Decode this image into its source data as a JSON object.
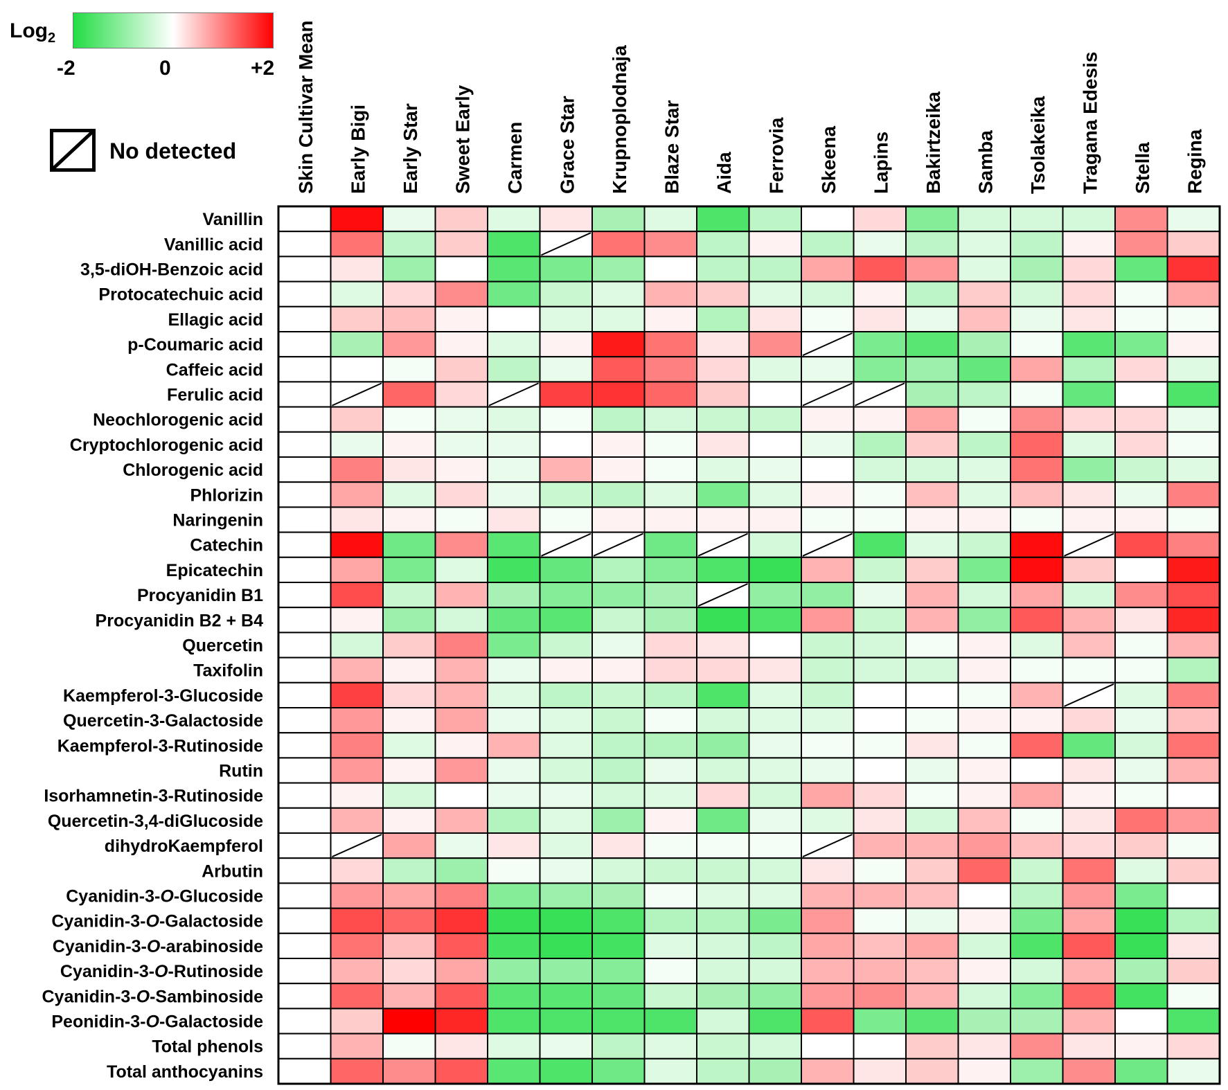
{
  "legend": {
    "label": "Log",
    "label_sub": "2",
    "min_label": "-2",
    "mid_label": "0",
    "max_label": "+2",
    "colors": {
      "low": "#22dd44",
      "mid": "#ffffff",
      "high": "#ff0000"
    },
    "no_detected_label": "No detected"
  },
  "chart_data": {
    "type": "heatmap",
    "scale": "log2",
    "range": [
      -2,
      2
    ],
    "columns": [
      "Skin Cultivar Mean",
      "Early Bigi",
      "Early Star",
      "Sweet Early",
      "Carmen",
      "Grace Star",
      "Krupnoplodnaja",
      "Blaze Star",
      "Aida",
      "Ferrovia",
      "Skeena",
      "Lapins",
      "Bakirtzeika",
      "Samba",
      "Tsolakeika",
      "Tragana Edesis",
      "Stella",
      "Regina"
    ],
    "rows": [
      {
        "label": "Vanillin",
        "values": [
          0,
          1.9,
          -0.2,
          0.4,
          -0.3,
          0.2,
          -0.8,
          -0.3,
          -1.6,
          -0.6,
          0,
          0.3,
          -1.1,
          -0.4,
          -0.4,
          -0.4,
          0.9,
          -0.2
        ]
      },
      {
        "label": "Vanillic acid",
        "values": [
          0,
          1.1,
          -0.6,
          0.4,
          -1.6,
          null,
          1.1,
          0.9,
          -0.6,
          0.1,
          -0.6,
          -0.2,
          -0.6,
          -0.3,
          -0.6,
          0.1,
          0.9,
          0.4
        ]
      },
      {
        "label": "3,5-diOH-Benzoic acid",
        "values": [
          0,
          0.2,
          -0.9,
          0,
          -1.5,
          -1.2,
          -0.9,
          0,
          -0.6,
          -0.6,
          0.7,
          1.3,
          0.8,
          -0.3,
          -0.8,
          0.3,
          -1.4,
          1.6
        ]
      },
      {
        "label": "Protocatechuic acid",
        "values": [
          0,
          -0.3,
          0.3,
          0.9,
          -1.3,
          -0.5,
          -0.3,
          0.6,
          0.4,
          -0.3,
          -0.4,
          0.1,
          -0.6,
          0.4,
          -0.4,
          0.3,
          -0.1,
          0.7
        ]
      },
      {
        "label": "Ellagic acid",
        "values": [
          0,
          0.4,
          0.5,
          0.1,
          0,
          -0.3,
          -0.3,
          0.1,
          -0.7,
          0.2,
          -0.1,
          0.2,
          -0.2,
          0.5,
          -0.2,
          0.2,
          -0.1,
          -0.1
        ]
      },
      {
        "label": "p-Coumaric acid",
        "values": [
          0,
          -0.8,
          0.8,
          0.1,
          -0.3,
          0.1,
          1.8,
          1.1,
          0.2,
          0.9,
          null,
          -1.2,
          -1.5,
          -0.8,
          -0.1,
          -1.5,
          -1.2,
          0.1
        ]
      },
      {
        "label": "Caffeic acid",
        "values": [
          0,
          0,
          -0.1,
          0.4,
          -0.6,
          -0.2,
          1.3,
          1.0,
          0.3,
          -0.3,
          -0.2,
          -1.1,
          -0.9,
          -1.4,
          0.7,
          -0.7,
          0.3,
          -0.3
        ]
      },
      {
        "label": "Ferulic acid",
        "values": [
          0,
          null,
          1.2,
          0.3,
          null,
          1.5,
          1.6,
          1.2,
          0.4,
          0,
          null,
          null,
          -0.8,
          -0.6,
          -0.1,
          -1.4,
          0,
          -1.6
        ]
      },
      {
        "label": "Neochlorogenic acid",
        "values": [
          0,
          0.4,
          -0.1,
          -0.2,
          -0.3,
          -0.1,
          -0.6,
          -0.4,
          -0.5,
          -0.5,
          0.1,
          0.1,
          0.7,
          -0.1,
          0.9,
          0.3,
          0.3,
          -0.2
        ]
      },
      {
        "label": "Cryptochlorogenic acid",
        "values": [
          0,
          -0.2,
          0.1,
          -0.2,
          -0.2,
          0,
          0.1,
          -0.1,
          0.2,
          0,
          -0.2,
          -0.7,
          0.4,
          -0.6,
          1.2,
          -0.3,
          0.3,
          -0.1
        ]
      },
      {
        "label": "Chlorogenic acid",
        "values": [
          0,
          1.0,
          0.2,
          0.1,
          -0.2,
          0.6,
          0.1,
          -0.1,
          -0.3,
          -0.2,
          0,
          -0.4,
          -0.4,
          -0.3,
          1.1,
          -1.0,
          -0.5,
          -0.3
        ]
      },
      {
        "label": "Phlorizin",
        "values": [
          0,
          0.7,
          -0.3,
          0.3,
          -0.2,
          -0.5,
          -0.6,
          -0.3,
          -1.2,
          -0.3,
          0.1,
          -0.1,
          0.5,
          -0.3,
          0.5,
          0.2,
          -0.2,
          1.0
        ]
      },
      {
        "label": "Naringenin",
        "values": [
          0,
          0.2,
          0.1,
          -0.1,
          0.2,
          -0.1,
          0.1,
          0.1,
          0.1,
          0.1,
          -0.1,
          -0.1,
          0.1,
          0.1,
          -0.1,
          0.1,
          0.1,
          -0.1
        ]
      },
      {
        "label": "Catechin",
        "values": [
          0,
          1.9,
          -1.3,
          0.9,
          -1.5,
          null,
          null,
          -1.3,
          null,
          -0.4,
          null,
          -1.6,
          -0.3,
          -0.5,
          1.9,
          null,
          1.4,
          1.0
        ]
      },
      {
        "label": "Epicatechin",
        "values": [
          0,
          0.7,
          -1.2,
          -0.3,
          -1.7,
          -1.4,
          -0.7,
          -1.1,
          -1.6,
          -1.8,
          0.6,
          -0.5,
          0.4,
          -1.2,
          1.9,
          0.4,
          0,
          1.8
        ]
      },
      {
        "label": "Procyanidin B1",
        "values": [
          0,
          1.4,
          -0.5,
          0.6,
          -0.8,
          -1.1,
          -1.0,
          -0.8,
          null,
          -1.0,
          -1.0,
          -0.2,
          0.6,
          -0.4,
          0.7,
          -0.4,
          0.9,
          1.4
        ]
      },
      {
        "label": "Procyanidin B2 + B4",
        "values": [
          0,
          0.1,
          -0.9,
          -0.4,
          -1.4,
          -1.5,
          -0.5,
          -0.8,
          -1.8,
          -1.6,
          0.8,
          -0.5,
          0.6,
          -1.0,
          1.3,
          0.6,
          0.2,
          1.7
        ]
      },
      {
        "label": "Quercetin",
        "values": [
          0,
          -0.4,
          0.4,
          1.0,
          -1.2,
          -0.5,
          -0.2,
          0.3,
          0.2,
          0,
          -0.5,
          -0.4,
          -0.1,
          0.1,
          -0.3,
          0.5,
          -0.1,
          0.6
        ]
      },
      {
        "label": "Taxifolin",
        "values": [
          0,
          0.6,
          0.1,
          0.6,
          -0.2,
          0.1,
          0.1,
          0.3,
          0.3,
          0.2,
          -0.5,
          -0.4,
          -0.4,
          0.1,
          -0.1,
          -0.1,
          -0.1,
          -0.7
        ]
      },
      {
        "label": "Kaempferol-3-Glucoside",
        "values": [
          0,
          1.5,
          0.3,
          0.6,
          -0.3,
          -0.6,
          -0.5,
          -0.6,
          -1.6,
          -0.3,
          -0.5,
          0,
          0,
          -0.1,
          0.6,
          null,
          -0.3,
          1.0
        ]
      },
      {
        "label": "Quercetin-3-Galactoside",
        "values": [
          0,
          0.8,
          0.1,
          0.7,
          -0.2,
          -0.3,
          -0.5,
          -0.1,
          -0.4,
          -0.3,
          -0.3,
          0,
          -0.1,
          0.1,
          0.1,
          0.3,
          -0.2,
          0.5
        ]
      },
      {
        "label": "Kaempferol-3-Rutinoside",
        "values": [
          0,
          1.0,
          -0.3,
          0.1,
          0.6,
          -0.3,
          -0.6,
          -0.7,
          -1.0,
          -0.2,
          -0.1,
          -0.1,
          0.2,
          -0.1,
          1.2,
          -1.4,
          -0.4,
          1.1
        ]
      },
      {
        "label": "Rutin",
        "values": [
          0,
          0.8,
          0.1,
          0.8,
          -0.2,
          -0.4,
          -0.6,
          -0.2,
          -0.4,
          -0.3,
          -0.2,
          0,
          -0.2,
          0.1,
          0,
          0.2,
          -0.2,
          0.6
        ]
      },
      {
        "label": "Isorhamnetin-3-Rutinoside",
        "values": [
          0,
          0.1,
          -0.4,
          0,
          -0.2,
          -0.2,
          -0.4,
          -0.3,
          0.3,
          -0.4,
          0.7,
          0.3,
          -0.1,
          0.1,
          0.7,
          0.1,
          -0.1,
          0
        ]
      },
      {
        "label": "Quercetin-3,4-diGlucoside",
        "values": [
          0,
          0.6,
          0.1,
          0.6,
          -0.7,
          -0.3,
          -0.9,
          0.1,
          -1.3,
          -0.2,
          -0.3,
          0.2,
          -0.4,
          0.5,
          -0.1,
          0.2,
          1.1,
          0.8
        ]
      },
      {
        "label": "dihydroKaempferol",
        "values": [
          0,
          null,
          0.7,
          -0.2,
          0.2,
          -0.3,
          0.2,
          -0.1,
          -0.1,
          -0.1,
          null,
          0.6,
          0.6,
          0.8,
          0.5,
          0.3,
          0.4,
          -0.1
        ]
      },
      {
        "label": "Arbutin",
        "values": [
          0,
          0.3,
          -0.6,
          -0.9,
          -0.1,
          -0.2,
          -0.4,
          -0.5,
          -0.5,
          -0.4,
          0.2,
          -0.1,
          0.4,
          1.2,
          -0.5,
          1.1,
          -0.3,
          0.4
        ]
      },
      {
        "label": "Cyanidin-3-O-Glucoside",
        "values": [
          0,
          0.8,
          0.7,
          1.0,
          -1.1,
          -0.9,
          -0.8,
          -0.1,
          -0.3,
          -0.3,
          0.6,
          0.6,
          0.5,
          0,
          -0.6,
          0.8,
          -1.2,
          0
        ]
      },
      {
        "label": "Cyanidin-3-O-Galactoside",
        "values": [
          0,
          1.4,
          1.2,
          1.6,
          -1.8,
          -1.8,
          -1.6,
          -0.7,
          -0.7,
          -1.2,
          0.8,
          -0.1,
          -0.2,
          0.1,
          -1.2,
          0.7,
          -1.8,
          -0.7
        ]
      },
      {
        "label": "Cyanidin-3-O-arabinoside",
        "values": [
          0,
          1.1,
          0.5,
          1.3,
          -1.7,
          -1.8,
          -1.7,
          -0.3,
          -0.4,
          -0.6,
          0.7,
          0.5,
          0.7,
          -0.4,
          -1.6,
          1.3,
          -1.8,
          0.2
        ]
      },
      {
        "label": "Cyanidin-3-O-Rutinoside",
        "values": [
          0,
          0.6,
          0.3,
          0.7,
          -1.0,
          -1.0,
          -1.1,
          -0.1,
          -0.4,
          -0.4,
          0.6,
          0.6,
          0.5,
          0.1,
          -0.4,
          0.6,
          -0.8,
          0.4
        ]
      },
      {
        "label": "Cyanidin-3-O-Sambinoside",
        "values": [
          0,
          1.2,
          0.6,
          1.3,
          -1.5,
          -1.5,
          -1.4,
          -0.5,
          -0.8,
          -1.0,
          0.8,
          0.9,
          0.6,
          -0.4,
          -1.1,
          1.2,
          -1.7,
          -0.1
        ]
      },
      {
        "label": "Peonidin-3-O-Galactoside",
        "values": [
          0,
          0.4,
          2.0,
          1.7,
          -1.6,
          -1.6,
          -1.6,
          -1.6,
          -0.4,
          -1.6,
          1.3,
          -1.2,
          -1.5,
          -0.8,
          -0.8,
          0.6,
          0,
          -1.6
        ]
      },
      {
        "label": "Total phenols",
        "values": [
          0,
          0.6,
          -0.1,
          0.2,
          -0.3,
          -0.2,
          -0.6,
          -0.3,
          -0.5,
          -0.4,
          0,
          0,
          0.4,
          0.2,
          0.9,
          0.2,
          0.1,
          0.3
        ]
      },
      {
        "label": "Total anthocyanins",
        "values": [
          0,
          1.2,
          0.9,
          1.3,
          -1.5,
          -1.6,
          -1.3,
          -0.3,
          -0.6,
          -0.8,
          0.6,
          0.2,
          0.4,
          0.1,
          -0.9,
          0.9,
          -1.3,
          -0.2
        ]
      }
    ]
  }
}
